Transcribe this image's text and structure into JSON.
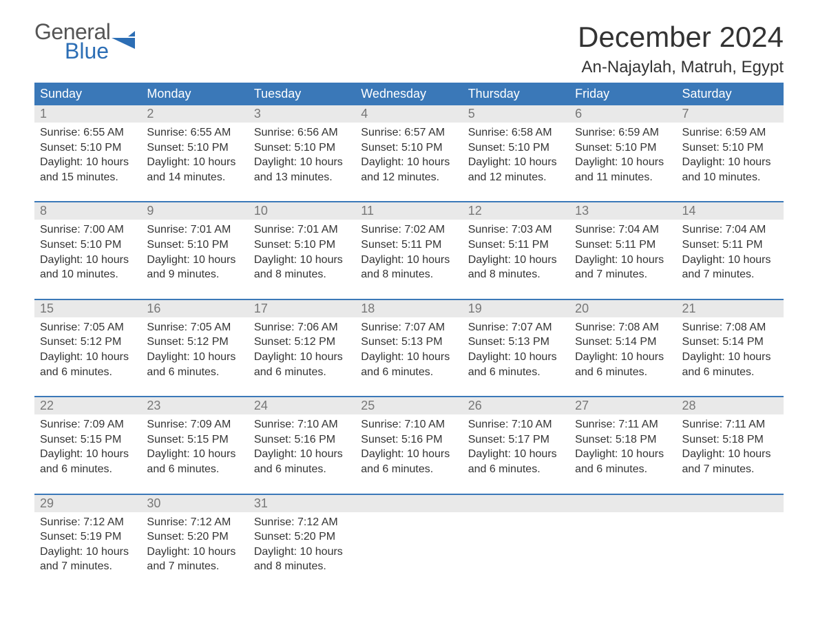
{
  "brand": {
    "general": "General",
    "blue": "Blue",
    "accent_color": "#2c6eb5"
  },
  "title": "December 2024",
  "location": "An-Najaylah, Matruh, Egypt",
  "colors": {
    "header_bg": "#3a78b8",
    "header_text": "#ffffff",
    "daynum_bg": "#e9e9e9",
    "daynum_text": "#777777",
    "body_text": "#333333",
    "rule": "#3a78b8",
    "page_bg": "#ffffff"
  },
  "typography": {
    "title_fontsize": 42,
    "location_fontsize": 24,
    "header_fontsize": 18,
    "daynum_fontsize": 18,
    "cell_fontsize": 16,
    "font_family": "Arial"
  },
  "weekdays": [
    "Sunday",
    "Monday",
    "Tuesday",
    "Wednesday",
    "Thursday",
    "Friday",
    "Saturday"
  ],
  "weeks": [
    [
      {
        "n": "1",
        "sr": "Sunrise: 6:55 AM",
        "ss": "Sunset: 5:10 PM",
        "d1": "Daylight: 10 hours",
        "d2": "and 15 minutes."
      },
      {
        "n": "2",
        "sr": "Sunrise: 6:55 AM",
        "ss": "Sunset: 5:10 PM",
        "d1": "Daylight: 10 hours",
        "d2": "and 14 minutes."
      },
      {
        "n": "3",
        "sr": "Sunrise: 6:56 AM",
        "ss": "Sunset: 5:10 PM",
        "d1": "Daylight: 10 hours",
        "d2": "and 13 minutes."
      },
      {
        "n": "4",
        "sr": "Sunrise: 6:57 AM",
        "ss": "Sunset: 5:10 PM",
        "d1": "Daylight: 10 hours",
        "d2": "and 12 minutes."
      },
      {
        "n": "5",
        "sr": "Sunrise: 6:58 AM",
        "ss": "Sunset: 5:10 PM",
        "d1": "Daylight: 10 hours",
        "d2": "and 12 minutes."
      },
      {
        "n": "6",
        "sr": "Sunrise: 6:59 AM",
        "ss": "Sunset: 5:10 PM",
        "d1": "Daylight: 10 hours",
        "d2": "and 11 minutes."
      },
      {
        "n": "7",
        "sr": "Sunrise: 6:59 AM",
        "ss": "Sunset: 5:10 PM",
        "d1": "Daylight: 10 hours",
        "d2": "and 10 minutes."
      }
    ],
    [
      {
        "n": "8",
        "sr": "Sunrise: 7:00 AM",
        "ss": "Sunset: 5:10 PM",
        "d1": "Daylight: 10 hours",
        "d2": "and 10 minutes."
      },
      {
        "n": "9",
        "sr": "Sunrise: 7:01 AM",
        "ss": "Sunset: 5:10 PM",
        "d1": "Daylight: 10 hours",
        "d2": "and 9 minutes."
      },
      {
        "n": "10",
        "sr": "Sunrise: 7:01 AM",
        "ss": "Sunset: 5:10 PM",
        "d1": "Daylight: 10 hours",
        "d2": "and 8 minutes."
      },
      {
        "n": "11",
        "sr": "Sunrise: 7:02 AM",
        "ss": "Sunset: 5:11 PM",
        "d1": "Daylight: 10 hours",
        "d2": "and 8 minutes."
      },
      {
        "n": "12",
        "sr": "Sunrise: 7:03 AM",
        "ss": "Sunset: 5:11 PM",
        "d1": "Daylight: 10 hours",
        "d2": "and 8 minutes."
      },
      {
        "n": "13",
        "sr": "Sunrise: 7:04 AM",
        "ss": "Sunset: 5:11 PM",
        "d1": "Daylight: 10 hours",
        "d2": "and 7 minutes."
      },
      {
        "n": "14",
        "sr": "Sunrise: 7:04 AM",
        "ss": "Sunset: 5:11 PM",
        "d1": "Daylight: 10 hours",
        "d2": "and 7 minutes."
      }
    ],
    [
      {
        "n": "15",
        "sr": "Sunrise: 7:05 AM",
        "ss": "Sunset: 5:12 PM",
        "d1": "Daylight: 10 hours",
        "d2": "and 6 minutes."
      },
      {
        "n": "16",
        "sr": "Sunrise: 7:05 AM",
        "ss": "Sunset: 5:12 PM",
        "d1": "Daylight: 10 hours",
        "d2": "and 6 minutes."
      },
      {
        "n": "17",
        "sr": "Sunrise: 7:06 AM",
        "ss": "Sunset: 5:12 PM",
        "d1": "Daylight: 10 hours",
        "d2": "and 6 minutes."
      },
      {
        "n": "18",
        "sr": "Sunrise: 7:07 AM",
        "ss": "Sunset: 5:13 PM",
        "d1": "Daylight: 10 hours",
        "d2": "and 6 minutes."
      },
      {
        "n": "19",
        "sr": "Sunrise: 7:07 AM",
        "ss": "Sunset: 5:13 PM",
        "d1": "Daylight: 10 hours",
        "d2": "and 6 minutes."
      },
      {
        "n": "20",
        "sr": "Sunrise: 7:08 AM",
        "ss": "Sunset: 5:14 PM",
        "d1": "Daylight: 10 hours",
        "d2": "and 6 minutes."
      },
      {
        "n": "21",
        "sr": "Sunrise: 7:08 AM",
        "ss": "Sunset: 5:14 PM",
        "d1": "Daylight: 10 hours",
        "d2": "and 6 minutes."
      }
    ],
    [
      {
        "n": "22",
        "sr": "Sunrise: 7:09 AM",
        "ss": "Sunset: 5:15 PM",
        "d1": "Daylight: 10 hours",
        "d2": "and 6 minutes."
      },
      {
        "n": "23",
        "sr": "Sunrise: 7:09 AM",
        "ss": "Sunset: 5:15 PM",
        "d1": "Daylight: 10 hours",
        "d2": "and 6 minutes."
      },
      {
        "n": "24",
        "sr": "Sunrise: 7:10 AM",
        "ss": "Sunset: 5:16 PM",
        "d1": "Daylight: 10 hours",
        "d2": "and 6 minutes."
      },
      {
        "n": "25",
        "sr": "Sunrise: 7:10 AM",
        "ss": "Sunset: 5:16 PM",
        "d1": "Daylight: 10 hours",
        "d2": "and 6 minutes."
      },
      {
        "n": "26",
        "sr": "Sunrise: 7:10 AM",
        "ss": "Sunset: 5:17 PM",
        "d1": "Daylight: 10 hours",
        "d2": "and 6 minutes."
      },
      {
        "n": "27",
        "sr": "Sunrise: 7:11 AM",
        "ss": "Sunset: 5:18 PM",
        "d1": "Daylight: 10 hours",
        "d2": "and 6 minutes."
      },
      {
        "n": "28",
        "sr": "Sunrise: 7:11 AM",
        "ss": "Sunset: 5:18 PM",
        "d1": "Daylight: 10 hours",
        "d2": "and 7 minutes."
      }
    ],
    [
      {
        "n": "29",
        "sr": "Sunrise: 7:12 AM",
        "ss": "Sunset: 5:19 PM",
        "d1": "Daylight: 10 hours",
        "d2": "and 7 minutes."
      },
      {
        "n": "30",
        "sr": "Sunrise: 7:12 AM",
        "ss": "Sunset: 5:20 PM",
        "d1": "Daylight: 10 hours",
        "d2": "and 7 minutes."
      },
      {
        "n": "31",
        "sr": "Sunrise: 7:12 AM",
        "ss": "Sunset: 5:20 PM",
        "d1": "Daylight: 10 hours",
        "d2": "and 8 minutes."
      },
      null,
      null,
      null,
      null
    ]
  ]
}
